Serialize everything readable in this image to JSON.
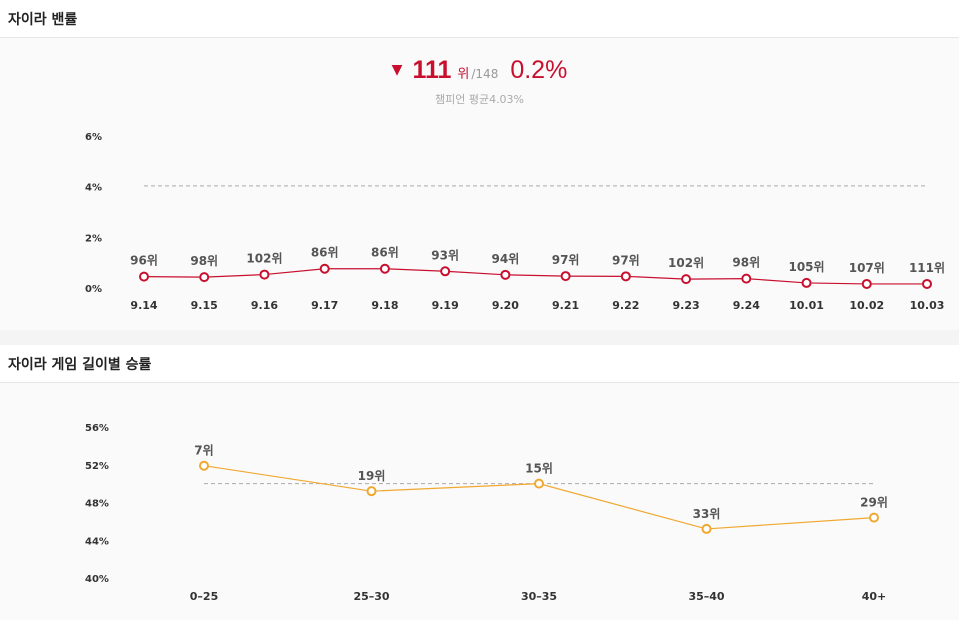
{
  "banrate": {
    "header": "자이라 밴률",
    "summary": {
      "rank": "111",
      "rank_suffix": "위",
      "total": "/148",
      "rate": "0.2%",
      "average": "챔피언 평균4.03%"
    },
    "colors": {
      "line": "#c8102e",
      "average": "#aaaaaa"
    }
  },
  "duration": {
    "header": "자이라 게임 길이별 승률",
    "colors": {
      "line": "#f0a830",
      "average": "#aaaaaa"
    }
  },
  "chart_data": [
    {
      "type": "line",
      "title": "자이라 밴률",
      "categories": [
        "9.14",
        "9.15",
        "9.16",
        "9.17",
        "9.18",
        "9.19",
        "9.20",
        "9.21",
        "9.22",
        "9.23",
        "9.24",
        "10.01",
        "10.02",
        "10.03"
      ],
      "series": [
        {
          "values": [
            0.45,
            0.43,
            0.53,
            0.76,
            0.76,
            0.66,
            0.52,
            0.47,
            0.46,
            0.35,
            0.37,
            0.2,
            0.16,
            0.16
          ]
        }
      ],
      "rank_labels": [
        "96위",
        "98위",
        "102위",
        "86위",
        "86위",
        "93위",
        "94위",
        "97위",
        "97위",
        "102위",
        "98위",
        "105위",
        "107위",
        "111위"
      ],
      "reference_line": 4.03,
      "yticks": [
        0,
        2,
        4,
        6
      ],
      "ytick_labels": [
        "0%",
        "2%",
        "4%",
        "6%"
      ],
      "ylim": [
        0,
        6
      ]
    },
    {
      "type": "line",
      "title": "자이라 게임 길이별 승률",
      "categories": [
        "0–25",
        "25–30",
        "30–35",
        "35–40",
        "40+"
      ],
      "series": [
        {
          "values": [
            51.9,
            49.2,
            50.0,
            45.2,
            46.4
          ]
        }
      ],
      "rank_labels": [
        "7위",
        "19위",
        "15위",
        "33위",
        "29위"
      ],
      "reference_line": 50,
      "yticks": [
        40,
        44,
        48,
        52,
        56
      ],
      "ytick_labels": [
        "40%",
        "44%",
        "48%",
        "52%",
        "56%"
      ],
      "ylim": [
        40,
        56
      ]
    }
  ]
}
